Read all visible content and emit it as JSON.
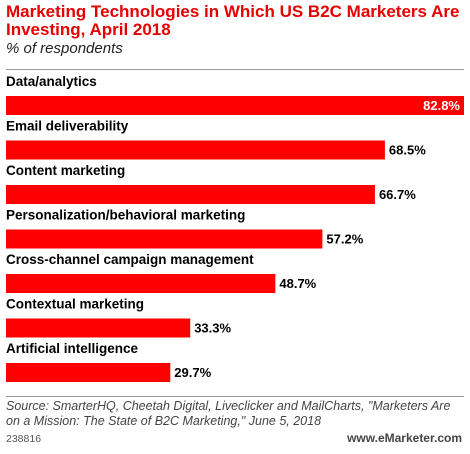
{
  "header": {
    "title": "Marketing Technologies in Which US B2C Marketers Are Investing, April 2018",
    "subtitle": "% of respondents"
  },
  "chart_data": {
    "type": "bar",
    "orientation": "horizontal",
    "categories": [
      "Data/analytics",
      "Email deliverability",
      "Content marketing",
      "Personalization/behavioral marketing",
      "Cross-channel campaign management",
      "Contextual marketing",
      "Artificial intelligence"
    ],
    "values": [
      82.8,
      68.5,
      66.7,
      57.2,
      48.7,
      33.3,
      29.7
    ],
    "value_labels": [
      "82.8%",
      "68.5%",
      "66.7%",
      "57.2%",
      "48.7%",
      "33.3%",
      "29.7%"
    ],
    "xlim": [
      0,
      82.8
    ],
    "bar_color": "#ff0000",
    "grid": false,
    "legend": "none"
  },
  "footer": {
    "source": "Source: SmarterHQ, Cheetah Digital, Liveclicker and MailCharts, \"Marketers Are on a Mission: The State of B2C Marketing,\" June 5, 2018",
    "chart_id": "238816",
    "brand": "www.eMarketer.com"
  },
  "colors": {
    "title": "#e60000",
    "bar": "#ff0000",
    "rule": "#999999"
  }
}
